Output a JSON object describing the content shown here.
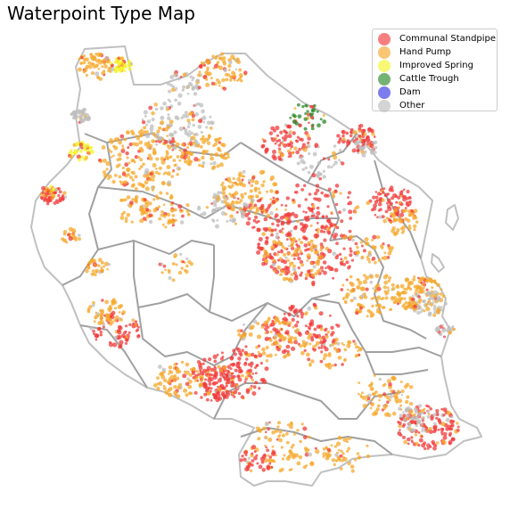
{
  "title": "Waterpoint Type Map",
  "legend": [
    {
      "label": "Communal Standpipe",
      "color": "#f23a3a"
    },
    {
      "label": "Hand Pump",
      "color": "#f5a82b"
    },
    {
      "label": "Improved Spring",
      "color": "#f5f52a"
    },
    {
      "label": "Cattle Trough",
      "color": "#2a8a2a"
    },
    {
      "label": "Dam",
      "color": "#3535e6"
    },
    {
      "label": "Other",
      "color": "#bdbdbd"
    }
  ],
  "boundary_color": "#a0a0a0"
}
